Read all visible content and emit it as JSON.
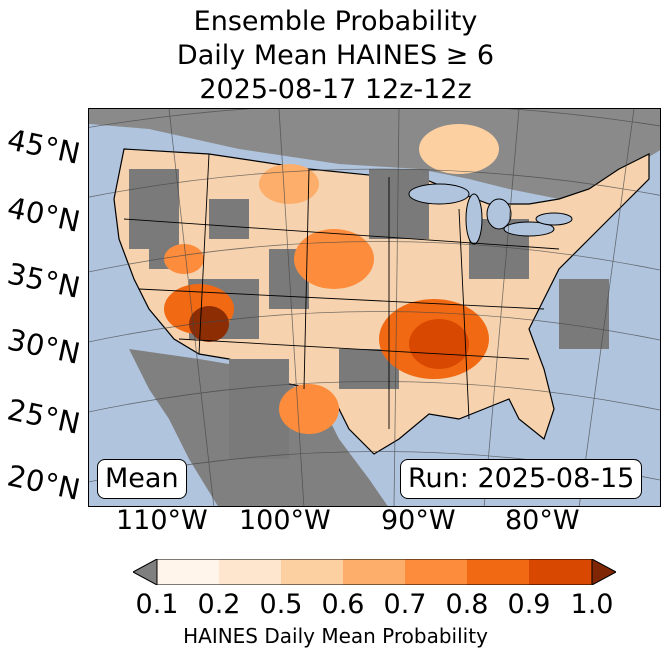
{
  "title": {
    "line1": "Ensemble Probability",
    "line2": "Daily Mean HAINES ≥ 6",
    "line3": "2025-08-17 12z-12z"
  },
  "map": {
    "lat_labels": [
      "45°N",
      "40°N",
      "35°N",
      "30°N",
      "25°N",
      "20°N"
    ],
    "lon_labels": [
      "110°W",
      "100°W",
      "90°W",
      "80°W"
    ],
    "stat_box": "Mean",
    "run_box": "Run: 2025-08-15",
    "colors": {
      "ocean": "#b0c4de",
      "land_missing": "#7a7a7a",
      "water_lake": "#b0c4de"
    }
  },
  "colorbar": {
    "label": "HAINES Daily Mean Probability",
    "ticks": [
      "0.1",
      "0.2",
      "0.5",
      "0.6",
      "0.7",
      "0.8",
      "0.9",
      "1.0"
    ],
    "under_color": "#7f7f7f",
    "over_color": "#7f2704",
    "bins": [
      "#fff5eb",
      "#fee6ce",
      "#fdd0a2",
      "#fdae6b",
      "#fd8d3c",
      "#f16913",
      "#d94801"
    ]
  }
}
